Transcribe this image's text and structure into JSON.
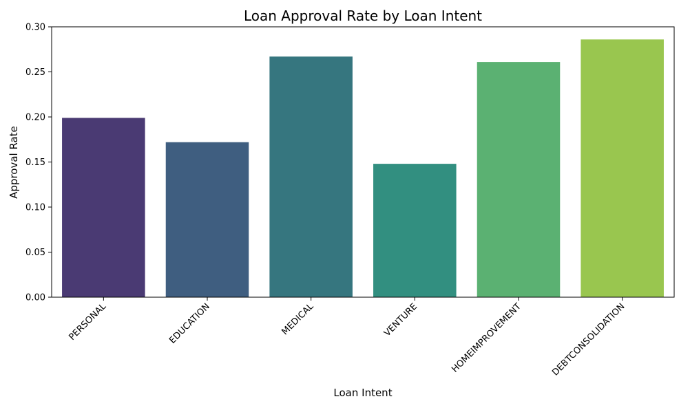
{
  "chart_data": {
    "type": "bar",
    "title": "Loan Approval Rate by Loan Intent",
    "xlabel": "Loan Intent",
    "ylabel": "Approval Rate",
    "categories": [
      "PERSONAL",
      "EDUCATION",
      "MEDICAL",
      "VENTURE",
      "HOMEIMPROVEMENT",
      "DEBTCONSOLIDATION"
    ],
    "values": [
      0.199,
      0.172,
      0.267,
      0.148,
      0.261,
      0.286
    ],
    "colors": [
      "#4a3a73",
      "#3f5e80",
      "#36767f",
      "#328f80",
      "#5bb172",
      "#99c64f"
    ],
    "ylim": [
      0,
      0.3
    ],
    "yticks": [
      "0.00",
      "0.05",
      "0.10",
      "0.15",
      "0.20",
      "0.25",
      "0.30"
    ],
    "grid": false,
    "legend": "none"
  }
}
